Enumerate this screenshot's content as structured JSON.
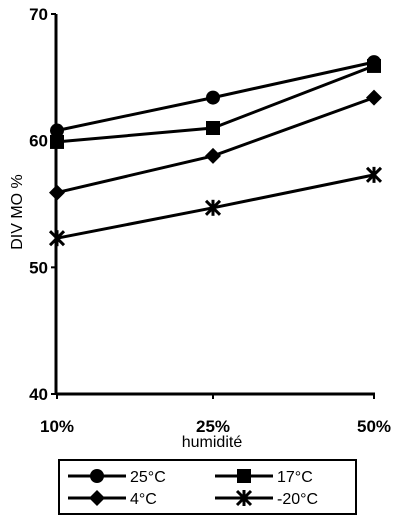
{
  "chart_data": {
    "type": "line",
    "categories": [
      "10%",
      "25%",
      "50%"
    ],
    "xlabel": "humidité",
    "ylabel": "DIV MO %",
    "ylim": [
      40,
      70
    ],
    "yticks": [
      "40",
      "50",
      "60",
      "70"
    ],
    "grid": false,
    "legend_position": "bottom",
    "series": [
      {
        "name": "25°C",
        "values": [
          60.8,
          63.4,
          66.2
        ],
        "marker": "circle"
      },
      {
        "name": "17°C",
        "values": [
          59.9,
          61.0,
          65.9
        ],
        "marker": "square"
      },
      {
        "name": "4°C",
        "values": [
          55.9,
          58.8,
          63.4
        ],
        "marker": "diamond"
      },
      {
        "name": "-20°C",
        "values": [
          52.3,
          54.7,
          57.3
        ],
        "marker": "asterisk"
      }
    ]
  }
}
